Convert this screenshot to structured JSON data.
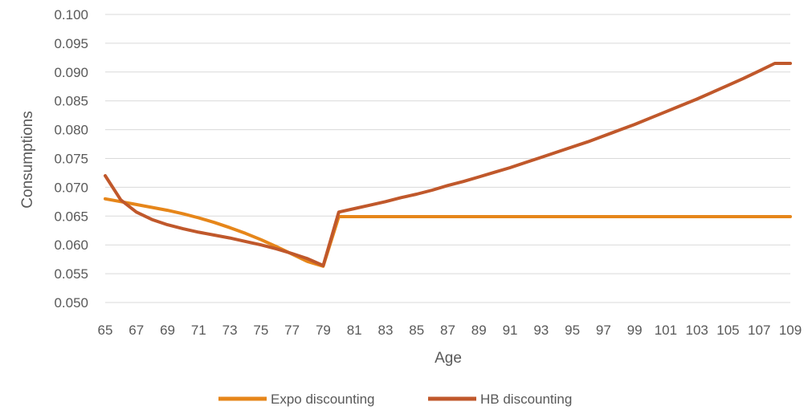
{
  "chart_data": {
    "type": "line",
    "xlabel": "Age",
    "ylabel": "Consumptions",
    "ylim": [
      0.05,
      0.1
    ],
    "y_ticks": [
      "0.050",
      "0.055",
      "0.060",
      "0.065",
      "0.070",
      "0.075",
      "0.080",
      "0.085",
      "0.090",
      "0.095",
      "0.100"
    ],
    "x_tick_labels": [
      "65",
      "67",
      "69",
      "71",
      "73",
      "75",
      "77",
      "79",
      "81",
      "83",
      "85",
      "87",
      "89",
      "91",
      "93",
      "95",
      "97",
      "99",
      "101",
      "103",
      "105",
      "107",
      "109"
    ],
    "grid": true,
    "legend_position": "bottom",
    "x": [
      65,
      66,
      67,
      68,
      69,
      70,
      71,
      72,
      73,
      74,
      75,
      76,
      77,
      78,
      79,
      80,
      81,
      82,
      83,
      84,
      85,
      86,
      87,
      88,
      89,
      90,
      91,
      92,
      93,
      94,
      95,
      96,
      97,
      98,
      99,
      100,
      101,
      102,
      103,
      104,
      105,
      106,
      107,
      108,
      109
    ],
    "series": [
      {
        "name": "Expo discounting",
        "color": "#E6861A",
        "values": [
          0.068,
          0.0675,
          0.067,
          0.0665,
          0.066,
          0.0654,
          0.0647,
          0.0639,
          0.063,
          0.062,
          0.0609,
          0.0597,
          0.0584,
          0.0571,
          0.0563,
          0.0649,
          0.0649,
          0.0649,
          0.0649,
          0.0649,
          0.0649,
          0.0649,
          0.0649,
          0.0649,
          0.0649,
          0.0649,
          0.0649,
          0.0649,
          0.0649,
          0.0649,
          0.0649,
          0.0649,
          0.0649,
          0.0649,
          0.0649,
          0.0649,
          0.0649,
          0.0649,
          0.0649,
          0.0649,
          0.0649,
          0.0649,
          0.0649,
          0.0649,
          0.0649
        ]
      },
      {
        "name": "HB discounting",
        "color": "#C0582B",
        "values": [
          0.072,
          0.0678,
          0.0657,
          0.0644,
          0.0635,
          0.0628,
          0.0622,
          0.0617,
          0.0612,
          0.0606,
          0.06,
          0.0593,
          0.0585,
          0.0576,
          0.0564,
          0.0657,
          0.0663,
          0.0669,
          0.0675,
          0.0682,
          0.0688,
          0.0695,
          0.0703,
          0.071,
          0.0718,
          0.0726,
          0.0734,
          0.0743,
          0.0752,
          0.0761,
          0.077,
          0.0779,
          0.0789,
          0.0799,
          0.0809,
          0.082,
          0.0831,
          0.0842,
          0.0853,
          0.0865,
          0.0877,
          0.0889,
          0.0902,
          0.0915,
          0.0915
        ]
      }
    ]
  }
}
